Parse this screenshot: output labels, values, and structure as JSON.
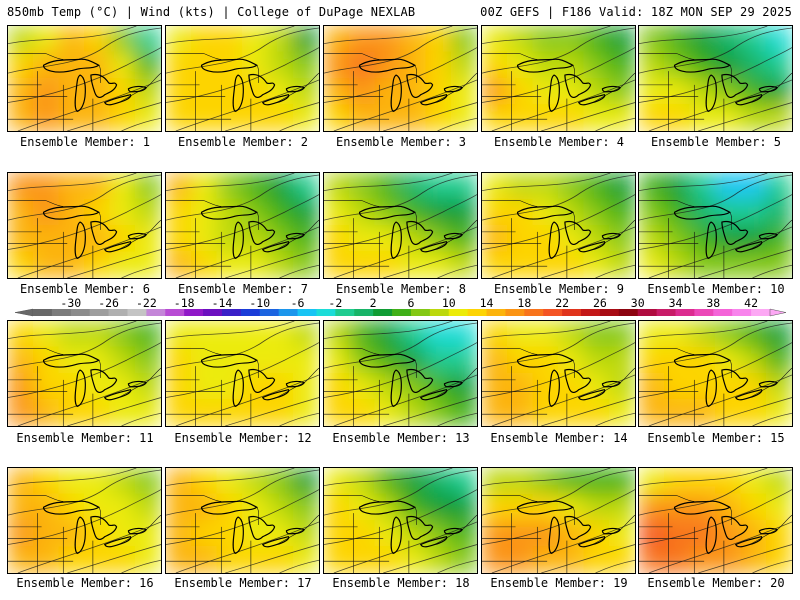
{
  "header": {
    "left": "850mb Temp (°C) | Wind (kts) | College of DuPage NEXLAB",
    "right": "00Z GEFS | F186 Valid: 18Z MON SEP 29 2025"
  },
  "colorbar": {
    "tick_labels": [
      "-30",
      "-26",
      "-22",
      "-18",
      "-14",
      "-10",
      "-6",
      "-2",
      "2",
      "6",
      "10",
      "14",
      "18",
      "22",
      "26",
      "30",
      "34",
      "38",
      "42"
    ],
    "colors": [
      "#686868",
      "#7c7c7c",
      "#8c8c8c",
      "#9e9e9e",
      "#b0b0b0",
      "#c4c4c4",
      "#c486d8",
      "#b84cd4",
      "#9018c8",
      "#6c10c0",
      "#3a20c8",
      "#1a3cd8",
      "#1c64e0",
      "#1c96ec",
      "#18c4f4",
      "#1cdcd8",
      "#20cc90",
      "#18b468",
      "#109c34",
      "#40b018",
      "#84c814",
      "#bcd80c",
      "#eceb08",
      "#fdd404",
      "#fcb40c",
      "#fb9414",
      "#f8741c",
      "#f45424",
      "#e0341c",
      "#c41818",
      "#a80c14",
      "#8c0410",
      "#b00c40",
      "#c81c68",
      "#dc2c90",
      "#ec48b8",
      "#f464d8",
      "#f884ec",
      "#fca8f4"
    ]
  },
  "members": [
    {
      "label": "Ensemble Member: 1",
      "temp_c": [
        [
          8,
          10,
          14,
          12,
          6,
          -2
        ],
        [
          12,
          14,
          14,
          14,
          10,
          4
        ],
        [
          14,
          16,
          14,
          14,
          12,
          8
        ],
        [
          14,
          16,
          14,
          14,
          12,
          10
        ]
      ]
    },
    {
      "label": "Ensemble Member: 2",
      "temp_c": [
        [
          10,
          12,
          12,
          10,
          8,
          2
        ],
        [
          12,
          12,
          12,
          10,
          8,
          6
        ],
        [
          12,
          12,
          12,
          12,
          10,
          8
        ],
        [
          12,
          12,
          12,
          12,
          12,
          10
        ]
      ]
    },
    {
      "label": "Ensemble Member: 3",
      "temp_c": [
        [
          14,
          16,
          16,
          14,
          12,
          6
        ],
        [
          16,
          18,
          16,
          14,
          12,
          8
        ],
        [
          14,
          16,
          14,
          14,
          12,
          10
        ],
        [
          12,
          14,
          14,
          14,
          12,
          10
        ]
      ]
    },
    {
      "label": "Ensemble Member: 4",
      "temp_c": [
        [
          10,
          8,
          6,
          6,
          4,
          2
        ],
        [
          12,
          10,
          8,
          8,
          6,
          4
        ],
        [
          16,
          12,
          10,
          10,
          8,
          6
        ],
        [
          12,
          12,
          12,
          12,
          10,
          10
        ]
      ]
    },
    {
      "label": "Ensemble Member: 5",
      "temp_c": [
        [
          6,
          4,
          2,
          0,
          -2,
          -4
        ],
        [
          8,
          6,
          4,
          2,
          0,
          -2
        ],
        [
          10,
          10,
          8,
          6,
          4,
          2
        ],
        [
          12,
          12,
          10,
          10,
          8,
          8
        ]
      ]
    },
    {
      "label": "Ensemble Member: 6",
      "temp_c": [
        [
          16,
          16,
          14,
          14,
          10,
          6
        ],
        [
          14,
          16,
          14,
          12,
          10,
          8
        ],
        [
          14,
          14,
          14,
          14,
          12,
          10
        ],
        [
          12,
          14,
          14,
          12,
          10,
          10
        ]
      ]
    },
    {
      "label": "Ensemble Member: 7",
      "temp_c": [
        [
          14,
          10,
          6,
          4,
          2,
          -2
        ],
        [
          12,
          10,
          8,
          6,
          4,
          2
        ],
        [
          12,
          10,
          8,
          8,
          6,
          4
        ],
        [
          14,
          12,
          10,
          10,
          8,
          6
        ]
      ]
    },
    {
      "label": "Ensemble Member: 8",
      "temp_c": [
        [
          8,
          6,
          4,
          0,
          -2,
          -2
        ],
        [
          10,
          8,
          6,
          4,
          2,
          2
        ],
        [
          12,
          10,
          10,
          8,
          6,
          4
        ],
        [
          12,
          12,
          12,
          10,
          10,
          8
        ]
      ]
    },
    {
      "label": "Ensemble Member: 9",
      "temp_c": [
        [
          10,
          8,
          8,
          6,
          4,
          2
        ],
        [
          12,
          12,
          10,
          8,
          6,
          4
        ],
        [
          14,
          12,
          12,
          10,
          8,
          6
        ],
        [
          12,
          12,
          12,
          12,
          10,
          8
        ]
      ]
    },
    {
      "label": "Ensemble Member: 10",
      "temp_c": [
        [
          4,
          2,
          -2,
          -6,
          -6,
          -2
        ],
        [
          6,
          4,
          0,
          -2,
          -2,
          0
        ],
        [
          8,
          6,
          4,
          2,
          2,
          4
        ],
        [
          10,
          8,
          6,
          6,
          6,
          6
        ]
      ]
    },
    {
      "label": "Ensemble Member: 11",
      "temp_c": [
        [
          12,
          10,
          8,
          8,
          6,
          4
        ],
        [
          14,
          12,
          10,
          10,
          8,
          6
        ],
        [
          16,
          12,
          12,
          10,
          10,
          8
        ],
        [
          16,
          14,
          12,
          12,
          10,
          10
        ]
      ]
    },
    {
      "label": "Ensemble Member: 12",
      "temp_c": [
        [
          10,
          10,
          10,
          10,
          10,
          8
        ],
        [
          12,
          10,
          10,
          10,
          10,
          10
        ],
        [
          12,
          10,
          10,
          12,
          12,
          10
        ],
        [
          12,
          12,
          12,
          12,
          12,
          10
        ]
      ]
    },
    {
      "label": "Ensemble Member: 13",
      "temp_c": [
        [
          8,
          4,
          2,
          -2,
          -4,
          -4
        ],
        [
          10,
          6,
          4,
          2,
          -2,
          -2
        ],
        [
          12,
          10,
          8,
          6,
          4,
          2
        ],
        [
          12,
          12,
          10,
          8,
          6,
          4
        ]
      ]
    },
    {
      "label": "Ensemble Member: 14",
      "temp_c": [
        [
          12,
          10,
          10,
          8,
          6,
          6
        ],
        [
          14,
          12,
          12,
          10,
          8,
          8
        ],
        [
          14,
          14,
          12,
          12,
          10,
          8
        ],
        [
          14,
          14,
          12,
          12,
          12,
          10
        ]
      ]
    },
    {
      "label": "Ensemble Member: 15",
      "temp_c": [
        [
          10,
          10,
          8,
          6,
          4,
          2
        ],
        [
          12,
          12,
          12,
          10,
          8,
          4
        ],
        [
          14,
          12,
          12,
          12,
          12,
          8
        ],
        [
          14,
          14,
          14,
          12,
          12,
          10
        ]
      ]
    },
    {
      "label": "Ensemble Member: 16",
      "temp_c": [
        [
          14,
          12,
          10,
          10,
          8,
          6
        ],
        [
          14,
          14,
          12,
          10,
          10,
          8
        ],
        [
          16,
          14,
          14,
          12,
          10,
          10
        ],
        [
          14,
          14,
          12,
          12,
          12,
          10
        ]
      ]
    },
    {
      "label": "Ensemble Member: 17",
      "temp_c": [
        [
          14,
          12,
          10,
          8,
          6,
          2
        ],
        [
          14,
          14,
          12,
          10,
          8,
          6
        ],
        [
          14,
          12,
          12,
          10,
          10,
          8
        ],
        [
          14,
          14,
          12,
          12,
          12,
          10
        ]
      ]
    },
    {
      "label": "Ensemble Member: 18",
      "temp_c": [
        [
          10,
          8,
          4,
          2,
          0,
          -2
        ],
        [
          12,
          10,
          8,
          4,
          2,
          2
        ],
        [
          12,
          12,
          10,
          8,
          6,
          4
        ],
        [
          12,
          12,
          12,
          10,
          8,
          6
        ]
      ]
    },
    {
      "label": "Ensemble Member: 19",
      "temp_c": [
        [
          8,
          8,
          6,
          4,
          4,
          4
        ],
        [
          12,
          12,
          12,
          10,
          8,
          8
        ],
        [
          16,
          16,
          16,
          14,
          12,
          10
        ],
        [
          16,
          16,
          14,
          14,
          12,
          12
        ]
      ]
    },
    {
      "label": "Ensemble Member: 20",
      "temp_c": [
        [
          10,
          12,
          12,
          12,
          10,
          8
        ],
        [
          16,
          16,
          16,
          14,
          12,
          10
        ],
        [
          20,
          18,
          18,
          16,
          14,
          12
        ],
        [
          18,
          18,
          16,
          16,
          14,
          12
        ]
      ]
    }
  ]
}
